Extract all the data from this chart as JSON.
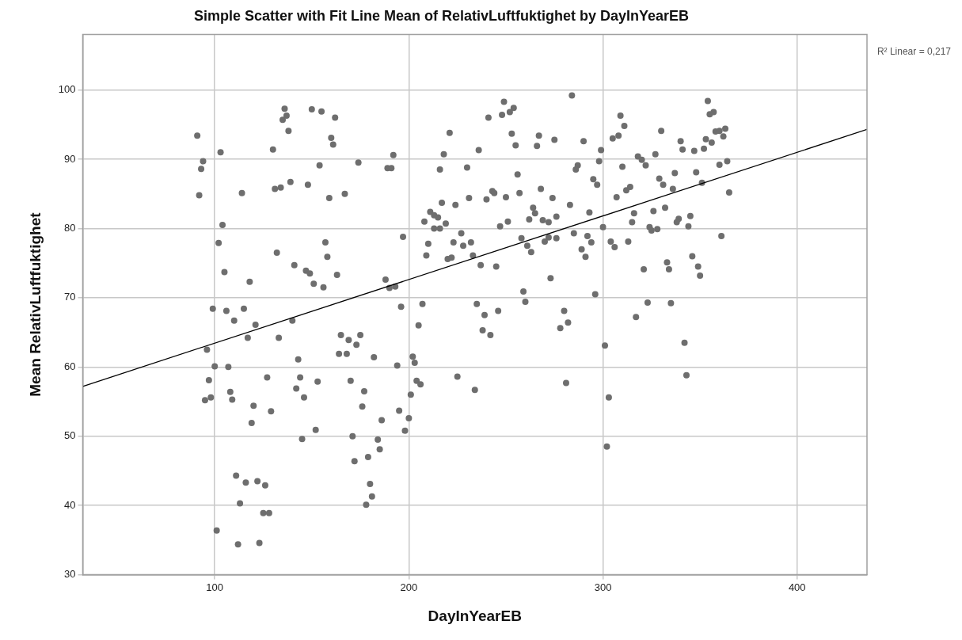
{
  "chart_data": {
    "type": "scatter",
    "title": "Simple Scatter with Fit Line Mean of RelativLuftfuktighet by DayInYearEB",
    "xlabel": "DayInYearEB",
    "ylabel": "Mean RelativLuftfuktighet",
    "annotations": [
      "R² Linear = 0,217"
    ],
    "xlim": [
      32,
      436
    ],
    "ylim": [
      30,
      108
    ],
    "xticks": [
      100,
      200,
      300,
      400
    ],
    "yticks": [
      30,
      40,
      50,
      60,
      70,
      80,
      90,
      100
    ],
    "grid": true,
    "marker": "circle",
    "series": [
      {
        "color": "#6e6e6e",
        "x": [
          91,
          103,
          94,
          93,
          92,
          114,
          130,
          136,
          137,
          135,
          138,
          150,
          155,
          162,
          160,
          161,
          154,
          174,
          131,
          134,
          139,
          148,
          159,
          167,
          104,
          102,
          132,
          141,
          147,
          149,
          157,
          158,
          163,
          151,
          156,
          105,
          118,
          99,
          106,
          115,
          110,
          121,
          140,
          117,
          133,
          96,
          100,
          107,
          97,
          108,
          109,
          95,
          98,
          127,
          120,
          129,
          119,
          143,
          144,
          142,
          146,
          153,
          152,
          145,
          165,
          169,
          173,
          175,
          164,
          168,
          182,
          170,
          177,
          176,
          171,
          172,
          179,
          111,
          116,
          122,
          126,
          113,
          125,
          128,
          101,
          112,
          123,
          180,
          181,
          178,
          205,
          238,
          242,
          194,
          202,
          203,
          204,
          206,
          201,
          225,
          234,
          195,
          186,
          200,
          198,
          184,
          185,
          249,
          254,
          252,
          248,
          241,
          221,
          253,
          255,
          267,
          266,
          275,
          236,
          218,
          216,
          192,
          189,
          191,
          230,
          256,
          268,
          274,
          243,
          244,
          240,
          250,
          257,
          231,
          217,
          224,
          211,
          213,
          215,
          208,
          213,
          216,
          219,
          197,
          210,
          209,
          227,
          223,
          228,
          232,
          220,
          222,
          233,
          237,
          245,
          247,
          251,
          264,
          265,
          262,
          269,
          272,
          276,
          258,
          261,
          263,
          270,
          272,
          276,
          273,
          259,
          260,
          188,
          190,
          193,
          196,
          207,
          235,
          239,
          246,
          284,
          290,
          309,
          311,
          305,
          308,
          299,
          298,
          287,
          286,
          310,
          330,
          327,
          318,
          320,
          322,
          340,
          341,
          347,
          352,
          353,
          356,
          354,
          355,
          357,
          358,
          360,
          363,
          362,
          360,
          364,
          365,
          348,
          351,
          337,
          329,
          331,
          336,
          312,
          314,
          307,
          295,
          297,
          283,
          293,
          316,
          315,
          326,
          332,
          324,
          325,
          328,
          339,
          338,
          345,
          344,
          361,
          300,
          285,
          292,
          294,
          304,
          306,
          313,
          289,
          291,
          321,
          333,
          334,
          346,
          349,
          350,
          296,
          323,
          335,
          317,
          280,
          282,
          278,
          301,
          342,
          281,
          343,
          303,
          302
        ],
        "values": [
          93.4,
          91.0,
          89.7,
          88.6,
          84.8,
          85.1,
          91.4,
          97.3,
          96.3,
          95.7,
          94.1,
          97.2,
          96.9,
          96.0,
          93.1,
          92.1,
          89.1,
          89.5,
          85.7,
          85.9,
          86.7,
          86.3,
          84.4,
          85.0,
          80.5,
          77.9,
          76.5,
          74.7,
          73.9,
          73.5,
          78.0,
          75.9,
          73.3,
          72.0,
          71.5,
          73.7,
          72.3,
          68.4,
          68.1,
          68.4,
          66.7,
          66.1,
          66.7,
          64.2,
          64.2,
          62.5,
          60.1,
          60.0,
          58.1,
          56.4,
          55.3,
          55.2,
          55.6,
          58.5,
          54.4,
          53.6,
          51.9,
          61.1,
          58.5,
          56.9,
          55.6,
          57.9,
          50.9,
          49.6,
          64.6,
          63.9,
          63.2,
          64.6,
          61.9,
          61.9,
          61.4,
          58.0,
          56.5,
          54.3,
          50.0,
          46.4,
          47.0,
          44.3,
          43.3,
          43.5,
          42.9,
          40.3,
          38.9,
          38.9,
          36.4,
          34.4,
          34.6,
          43.1,
          41.3,
          40.1,
          66.0,
          65.3,
          64.6,
          60.2,
          61.5,
          60.6,
          58.0,
          57.5,
          56.0,
          58.6,
          56.7,
          53.7,
          52.3,
          52.6,
          50.8,
          49.5,
          48.1,
          98.3,
          97.4,
          96.8,
          96.4,
          96.0,
          93.8,
          93.7,
          92.0,
          93.4,
          91.9,
          92.8,
          91.3,
          90.7,
          88.5,
          90.6,
          88.7,
          88.7,
          88.8,
          87.8,
          85.7,
          84.4,
          85.4,
          85.1,
          84.2,
          84.5,
          85.1,
          84.4,
          83.7,
          83.4,
          82.4,
          81.9,
          81.6,
          81.0,
          80.0,
          80.0,
          80.7,
          78.8,
          77.8,
          76.1,
          79.3,
          78.0,
          77.5,
          78.0,
          75.6,
          75.8,
          76.1,
          74.7,
          74.5,
          80.3,
          81.0,
          83.0,
          82.2,
          81.3,
          81.2,
          80.9,
          81.7,
          78.6,
          77.5,
          76.6,
          78.1,
          78.7,
          78.6,
          72.8,
          70.9,
          69.4,
          72.6,
          71.4,
          71.6,
          68.7,
          69.1,
          69.1,
          67.5,
          68.1,
          99.2,
          92.6,
          96.3,
          94.8,
          93.0,
          93.4,
          91.3,
          89.7,
          89.1,
          88.5,
          88.9,
          94.1,
          90.7,
          90.4,
          89.9,
          89.1,
          92.6,
          91.4,
          91.2,
          91.5,
          92.9,
          92.4,
          98.4,
          96.5,
          96.8,
          94.0,
          94.1,
          94.4,
          93.3,
          89.2,
          89.7,
          85.2,
          88.1,
          86.6,
          88.0,
          87.2,
          86.3,
          85.7,
          85.5,
          86.0,
          84.5,
          87.1,
          86.3,
          83.4,
          82.3,
          82.2,
          80.9,
          82.5,
          83.0,
          80.2,
          79.7,
          79.9,
          81.4,
          80.9,
          81.8,
          80.3,
          78.9,
          80.2,
          79.3,
          78.9,
          78.0,
          78.1,
          77.3,
          78.1,
          77.0,
          75.9,
          74.1,
          75.1,
          74.1,
          76.0,
          74.5,
          73.2,
          70.5,
          69.3,
          69.2,
          67.2,
          68.1,
          66.4,
          65.6,
          63.1,
          63.5,
          57.7,
          58.8,
          55.6,
          48.5
        ]
      },
      {
        "type": "line",
        "color": "#000000",
        "marker": "none",
        "line_style": "solid",
        "x": [
          32,
          436
        ],
        "values": [
          57.2,
          94.3
        ]
      }
    ]
  }
}
